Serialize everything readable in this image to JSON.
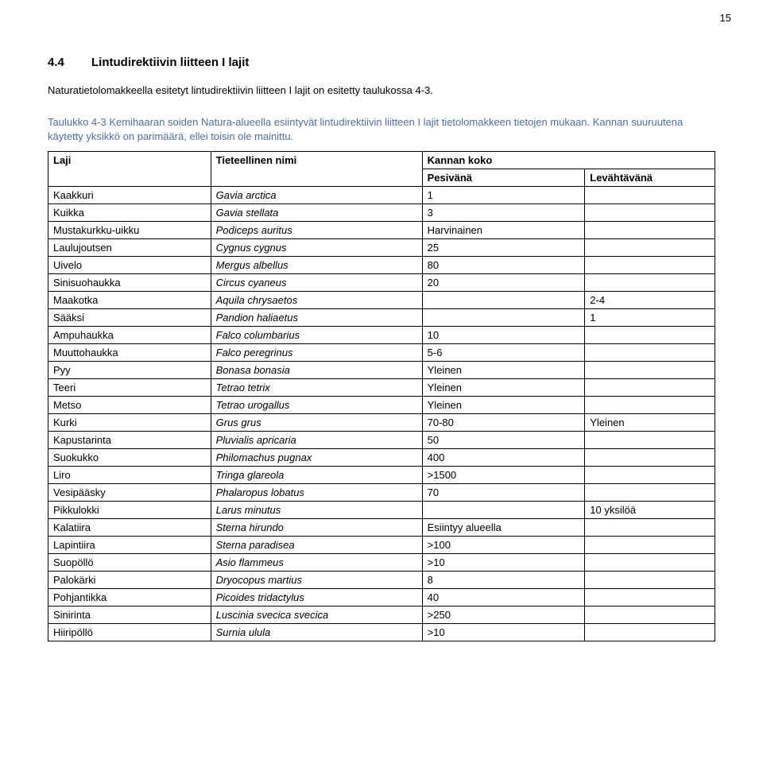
{
  "page_number": "15",
  "heading_number": "4.4",
  "heading_text": "Lintudirektiivin liitteen I lajit",
  "intro_text": "Naturatietolomakkeella esitetyt lintudirektiivin liitteen I lajit on esitetty taulukossa 4-3.",
  "caption_text": "Taulukko 4-3 Kemihaaran soiden Natura-alueella esiintyvät lintudirektiivin liitteen I lajit tietolomakkeen tietojen mukaan. Kannan suuruutena käytetty yksikkö on parimäärä, ellei toisin ole mainittu.",
  "table": {
    "columns": {
      "laji": "Laji",
      "sci": "Tieteellinen nimi",
      "kanta": "Kannan koko",
      "pes": "Pesivänä",
      "lev": "Levähtävänä"
    },
    "rows": [
      {
        "laji": "Kaakkuri",
        "sci": "Gavia arctica",
        "pes": "1",
        "lev": ""
      },
      {
        "laji": "Kuikka",
        "sci": "Gavia stellata",
        "pes": "3",
        "lev": ""
      },
      {
        "laji": "Mustakurkku-uikku",
        "sci": "Podiceps auritus",
        "pes": "Harvinainen",
        "lev": ""
      },
      {
        "laji": "Laulujoutsen",
        "sci": "Cygnus cygnus",
        "pes": "25",
        "lev": ""
      },
      {
        "laji": "Uivelo",
        "sci": "Mergus albellus",
        "pes": "80",
        "lev": ""
      },
      {
        "laji": "Sinisuohaukka",
        "sci": "Circus cyaneus",
        "pes": "20",
        "lev": ""
      },
      {
        "laji": "Maakotka",
        "sci": "Aquila chrysaetos",
        "pes": "",
        "lev": "2-4"
      },
      {
        "laji": "Sääksi",
        "sci": "Pandion haliaetus",
        "pes": "",
        "lev": "1"
      },
      {
        "laji": "Ampuhaukka",
        "sci": "Falco columbarius",
        "pes": "10",
        "lev": ""
      },
      {
        "laji": "Muuttohaukka",
        "sci": "Falco peregrinus",
        "pes": "5-6",
        "lev": ""
      },
      {
        "laji": "Pyy",
        "sci": "Bonasa bonasia",
        "pes": "Yleinen",
        "lev": ""
      },
      {
        "laji": "Teeri",
        "sci": "Tetrao tetrix",
        "pes": "Yleinen",
        "lev": ""
      },
      {
        "laji": "Metso",
        "sci": "Tetrao urogallus",
        "pes": "Yleinen",
        "lev": ""
      },
      {
        "laji": "Kurki",
        "sci": "Grus grus",
        "pes": "70-80",
        "lev": "Yleinen"
      },
      {
        "laji": "Kapustarinta",
        "sci": "Pluvialis apricaria",
        "pes": "50",
        "lev": ""
      },
      {
        "laji": "Suokukko",
        "sci": "Philomachus pugnax",
        "pes": "400",
        "lev": ""
      },
      {
        "laji": "Liro",
        "sci": "Tringa glareola",
        "pes": ">1500",
        "lev": ""
      },
      {
        "laji": "Vesipääsky",
        "sci": "Phalaropus lobatus",
        "pes": "70",
        "lev": ""
      },
      {
        "laji": "Pikkulokki",
        "sci": "Larus minutus",
        "pes": "",
        "lev": "10 yksilöä"
      },
      {
        "laji": "Kalatiira",
        "sci": "Sterna hirundo",
        "pes": "Esiintyy alueella",
        "lev": ""
      },
      {
        "laji": "Lapintiira",
        "sci": "Sterna paradisea",
        "pes": ">100",
        "lev": ""
      },
      {
        "laji": "Suopöllö",
        "sci": "Asio flammeus",
        "pes": ">10",
        "lev": ""
      },
      {
        "laji": "Palokärki",
        "sci": "Dryocopus martius",
        "pes": "8",
        "lev": ""
      },
      {
        "laji": "Pohjantikka",
        "sci": "Picoides tridactylus",
        "pes": "40",
        "lev": ""
      },
      {
        "laji": "Sinirinta",
        "sci": "Luscinia svecica svecica",
        "pes": ">250",
        "lev": ""
      },
      {
        "laji": "Hiiripöllö",
        "sci": "Surnia ulula",
        "pes": ">10",
        "lev": ""
      }
    ]
  }
}
